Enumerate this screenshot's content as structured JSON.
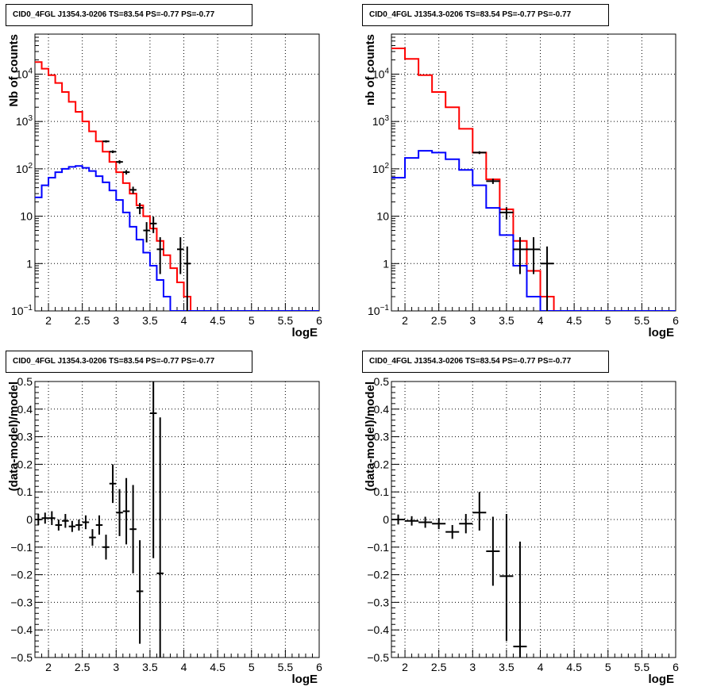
{
  "panels": [
    {
      "title": "CID0_4FGL J1354.3-0206 TS=83.54 PS=-0.77 PS=-0.77",
      "chart_data": {
        "type": "line",
        "title": "CID0_4FGL J1354.3-0206 TS=83.54 PS=-0.77 PS=-0.77",
        "xlabel": "logE",
        "ylabel": "Nb of counts",
        "xlim": [
          1.8,
          6.0
        ],
        "ylim": [
          0.1,
          70000
        ],
        "yscale": "log",
        "grid": true,
        "x_ticks": [
          "2",
          "2.5",
          "3",
          "3.5",
          "4",
          "4.5",
          "5",
          "5.5",
          "6"
        ],
        "y_ticks": [
          "10^-1",
          "1",
          "10",
          "10^2",
          "10^3",
          "10^4"
        ],
        "bin_edges": [
          1.8,
          1.9,
          2.0,
          2.1,
          2.2,
          2.3,
          2.4,
          2.5,
          2.6,
          2.7,
          2.8,
          2.9,
          3.0,
          3.1,
          3.2,
          3.3,
          3.4,
          3.5,
          3.6,
          3.7,
          3.8,
          3.9,
          4.0,
          4.1,
          4.2,
          4.3,
          4.4,
          4.5,
          4.6,
          4.7,
          4.8,
          4.9,
          5.0,
          5.1,
          5.2,
          5.3,
          5.4,
          5.5,
          5.6,
          5.7,
          5.8,
          5.9,
          6.0
        ],
        "series": [
          {
            "style": "histogram",
            "color": "#ff0000",
            "values": [
              18000,
              13000,
              9500,
              6500,
              4200,
              2600,
              1600,
              1000,
              620,
              380,
              230,
              140,
              85,
              50,
              30,
              17,
              10,
              5.5,
              3.0,
              1.5,
              0.8,
              0.4,
              0.2,
              0.1,
              0.1,
              0.1,
              0.1,
              0.1,
              0.1,
              0.1,
              0.1,
              0.1,
              0.1,
              0.1,
              0.1,
              0.1,
              0.1,
              0.1,
              0.1,
              0.1,
              0.1,
              0.1
            ]
          },
          {
            "style": "histogram",
            "color": "#0000ff",
            "values": [
              25,
              45,
              65,
              85,
              100,
              110,
              115,
              105,
              90,
              70,
              52,
              35,
              22,
              12,
              6,
              3.2,
              1.7,
              0.9,
              0.45,
              0.2,
              0.1,
              0.1,
              0.1,
              0.1,
              0.1,
              0.1,
              0.1,
              0.1,
              0.1,
              0.1,
              0.1,
              0.1,
              0.1,
              0.1,
              0.1,
              0.1,
              0.1,
              0.1,
              0.1,
              0.1,
              0.1,
              0.1
            ]
          },
          {
            "style": "points",
            "color": "#000000",
            "points": [
              {
                "x": 2.85,
                "y": 380,
                "xerr": 0.05,
                "ylo": 360,
                "yhi": 400
              },
              {
                "x": 2.95,
                "y": 230,
                "xerr": 0.05,
                "ylo": 215,
                "yhi": 245
              },
              {
                "x": 3.05,
                "y": 140,
                "xerr": 0.05,
                "ylo": 128,
                "yhi": 152
              },
              {
                "x": 3.15,
                "y": 85,
                "xerr": 0.05,
                "ylo": 76,
                "yhi": 94
              },
              {
                "x": 3.25,
                "y": 36,
                "xerr": 0.05,
                "ylo": 30,
                "yhi": 42
              },
              {
                "x": 3.35,
                "y": 15,
                "xerr": 0.05,
                "ylo": 11,
                "yhi": 19
              },
              {
                "x": 3.45,
                "y": 5,
                "xerr": 0.05,
                "ylo": 2.8,
                "yhi": 7.5
              },
              {
                "x": 3.55,
                "y": 7,
                "xerr": 0.05,
                "ylo": 4.4,
                "yhi": 9.8
              },
              {
                "x": 3.65,
                "y": 2,
                "xerr": 0.05,
                "ylo": 0.6,
                "yhi": 3.6
              },
              {
                "x": 3.95,
                "y": 2,
                "xerr": 0.05,
                "ylo": 0.6,
                "yhi": 3.6
              },
              {
                "x": 4.05,
                "y": 1,
                "xerr": 0.05,
                "ylo": 0.1,
                "yhi": 2.3
              }
            ]
          }
        ]
      }
    },
    {
      "title": "CID0_4FGL J1354.3-0206 TS=83.54 PS=-0.77 PS=-0.77",
      "chart_data": {
        "type": "line",
        "title": "CID0_4FGL J1354.3-0206 TS=83.54 PS=-0.77 PS=-0.77",
        "xlabel": "logE",
        "ylabel": "nb of counts",
        "xlim": [
          1.8,
          6.0
        ],
        "ylim": [
          0.1,
          70000
        ],
        "yscale": "log",
        "grid": true,
        "x_ticks": [
          "2",
          "2.5",
          "3",
          "3.5",
          "4",
          "4.5",
          "5",
          "5.5",
          "6"
        ],
        "y_ticks": [
          "10^-1",
          "1",
          "10",
          "10^2",
          "10^3",
          "10^4"
        ],
        "bin_edges": [
          1.8,
          2.0,
          2.2,
          2.4,
          2.6,
          2.8,
          3.0,
          3.2,
          3.4,
          3.6,
          3.8,
          4.0,
          4.2,
          4.4,
          4.6,
          4.8,
          5.0,
          5.2,
          5.4,
          5.6,
          5.8,
          6.0
        ],
        "series": [
          {
            "style": "histogram",
            "color": "#ff0000",
            "values": [
              35000,
              21000,
              9500,
              4200,
              2000,
              700,
              220,
              60,
              14,
              3.0,
              0.7,
              0.2,
              0.1,
              0.1,
              0.1,
              0.1,
              0.1,
              0.1,
              0.1,
              0.1,
              0.1
            ]
          },
          {
            "style": "histogram",
            "color": "#0000ff",
            "values": [
              65,
              170,
              240,
              220,
              160,
              95,
              45,
              15,
              4,
              0.9,
              0.2,
              0.1,
              0.1,
              0.1,
              0.1,
              0.1,
              0.1,
              0.1,
              0.1,
              0.1,
              0.1
            ]
          },
          {
            "style": "points",
            "color": "#000000",
            "points": [
              {
                "x": 3.1,
                "y": 220,
                "xerr": 0.1,
                "ylo": 205,
                "yhi": 235
              },
              {
                "x": 3.3,
                "y": 55,
                "xerr": 0.1,
                "ylo": 48,
                "yhi": 62
              },
              {
                "x": 3.5,
                "y": 12,
                "xerr": 0.1,
                "ylo": 8.5,
                "yhi": 15.5
              },
              {
                "x": 3.7,
                "y": 2,
                "xerr": 0.1,
                "ylo": 0.6,
                "yhi": 3.6
              },
              {
                "x": 3.9,
                "y": 2,
                "xerr": 0.1,
                "ylo": 0.6,
                "yhi": 3.6
              },
              {
                "x": 4.1,
                "y": 1,
                "xerr": 0.1,
                "ylo": 0.1,
                "yhi": 2.3
              }
            ]
          }
        ]
      }
    },
    {
      "title": "CID0_4FGL J1354.3-0206 TS=83.54 PS=-0.77 PS=-0.77",
      "chart_data": {
        "type": "scatter",
        "title": "CID0_4FGL J1354.3-0206 TS=83.54 PS=-0.77 PS=-0.77",
        "xlabel": "logE",
        "ylabel": "(data-model)/model",
        "xlim": [
          1.8,
          6.0
        ],
        "ylim": [
          -0.5,
          0.5
        ],
        "grid": true,
        "x_ticks": [
          "2",
          "2.5",
          "3",
          "3.5",
          "4",
          "4.5",
          "5",
          "5.5",
          "6"
        ],
        "y_ticks": [
          "-0.5",
          "-0.4",
          "-0.3",
          "-0.2",
          "-0.1",
          "0",
          "0.1",
          "0.2",
          "0.3",
          "0.4",
          "0.5"
        ],
        "series": [
          {
            "style": "points",
            "color": "#000000",
            "points": [
              {
                "x": 1.85,
                "y": 0.0,
                "xerr": 0.05,
                "ylo": -0.02,
                "yhi": 0.02
              },
              {
                "x": 1.95,
                "y": 0.005,
                "xerr": 0.05,
                "ylo": -0.015,
                "yhi": 0.025
              },
              {
                "x": 2.05,
                "y": 0.005,
                "xerr": 0.05,
                "ylo": -0.02,
                "yhi": 0.03
              },
              {
                "x": 2.15,
                "y": -0.02,
                "xerr": 0.05,
                "ylo": -0.04,
                "yhi": 0.0
              },
              {
                "x": 2.25,
                "y": -0.005,
                "xerr": 0.05,
                "ylo": -0.03,
                "yhi": 0.02
              },
              {
                "x": 2.35,
                "y": -0.025,
                "xerr": 0.05,
                "ylo": -0.045,
                "yhi": -0.005
              },
              {
                "x": 2.45,
                "y": -0.02,
                "xerr": 0.05,
                "ylo": -0.04,
                "yhi": 0.0
              },
              {
                "x": 2.55,
                "y": -0.01,
                "xerr": 0.05,
                "ylo": -0.035,
                "yhi": 0.015
              },
              {
                "x": 2.65,
                "y": -0.065,
                "xerr": 0.05,
                "ylo": -0.095,
                "yhi": -0.035
              },
              {
                "x": 2.75,
                "y": -0.02,
                "xerr": 0.05,
                "ylo": -0.055,
                "yhi": 0.015
              },
              {
                "x": 2.85,
                "y": -0.1,
                "xerr": 0.05,
                "ylo": -0.145,
                "yhi": -0.055
              },
              {
                "x": 2.95,
                "y": 0.13,
                "xerr": 0.05,
                "ylo": 0.06,
                "yhi": 0.2
              },
              {
                "x": 3.05,
                "y": 0.025,
                "xerr": 0.05,
                "ylo": -0.06,
                "yhi": 0.11
              },
              {
                "x": 3.15,
                "y": 0.03,
                "xerr": 0.05,
                "ylo": -0.09,
                "yhi": 0.15
              },
              {
                "x": 3.25,
                "y": -0.035,
                "xerr": 0.05,
                "ylo": -0.195,
                "yhi": 0.125
              },
              {
                "x": 3.35,
                "y": -0.26,
                "xerr": 0.05,
                "ylo": -0.45,
                "yhi": -0.075
              },
              {
                "x": 3.55,
                "y": 0.385,
                "xerr": 0.05,
                "ylo": -0.14,
                "yhi": 0.5
              },
              {
                "x": 3.65,
                "y": -0.195,
                "xerr": 0.05,
                "ylo": -0.5,
                "yhi": 0.37
              }
            ]
          }
        ]
      }
    },
    {
      "title": "CID0_4FGL J1354.3-0206 TS=83.54 PS=-0.77 PS=-0.77",
      "chart_data": {
        "type": "scatter",
        "title": "CID0_4FGL J1354.3-0206 TS=83.54 PS=-0.77 PS=-0.77",
        "xlabel": "logE",
        "ylabel": "(data-model)/model",
        "xlim": [
          1.8,
          6.0
        ],
        "ylim": [
          -0.5,
          0.5
        ],
        "grid": true,
        "x_ticks": [
          "2",
          "2.5",
          "3",
          "3.5",
          "4",
          "4.5",
          "5",
          "5.5",
          "6"
        ],
        "y_ticks": [
          "-0.5",
          "-0.4",
          "-0.3",
          "-0.2",
          "-0.1",
          "0",
          "0.1",
          "0.2",
          "0.3",
          "0.4",
          "0.5"
        ],
        "series": [
          {
            "style": "points",
            "color": "#000000",
            "points": [
              {
                "x": 1.9,
                "y": 0.0,
                "xerr": 0.1,
                "ylo": -0.018,
                "yhi": 0.018
              },
              {
                "x": 2.1,
                "y": -0.005,
                "xerr": 0.1,
                "ylo": -0.022,
                "yhi": 0.012
              },
              {
                "x": 2.3,
                "y": -0.01,
                "xerr": 0.1,
                "ylo": -0.03,
                "yhi": 0.01
              },
              {
                "x": 2.5,
                "y": -0.015,
                "xerr": 0.1,
                "ylo": -0.035,
                "yhi": 0.005
              },
              {
                "x": 2.7,
                "y": -0.045,
                "xerr": 0.1,
                "ylo": -0.07,
                "yhi": -0.02
              },
              {
                "x": 2.9,
                "y": -0.015,
                "xerr": 0.1,
                "ylo": -0.05,
                "yhi": 0.02
              },
              {
                "x": 3.1,
                "y": 0.025,
                "xerr": 0.1,
                "ylo": -0.04,
                "yhi": 0.1
              },
              {
                "x": 3.3,
                "y": -0.115,
                "xerr": 0.1,
                "ylo": -0.24,
                "yhi": 0.01
              },
              {
                "x": 3.5,
                "y": -0.205,
                "xerr": 0.1,
                "ylo": -0.44,
                "yhi": 0.02
              },
              {
                "x": 3.7,
                "y": -0.46,
                "xerr": 0.1,
                "ylo": -0.5,
                "yhi": -0.08
              }
            ]
          }
        ]
      }
    }
  ]
}
